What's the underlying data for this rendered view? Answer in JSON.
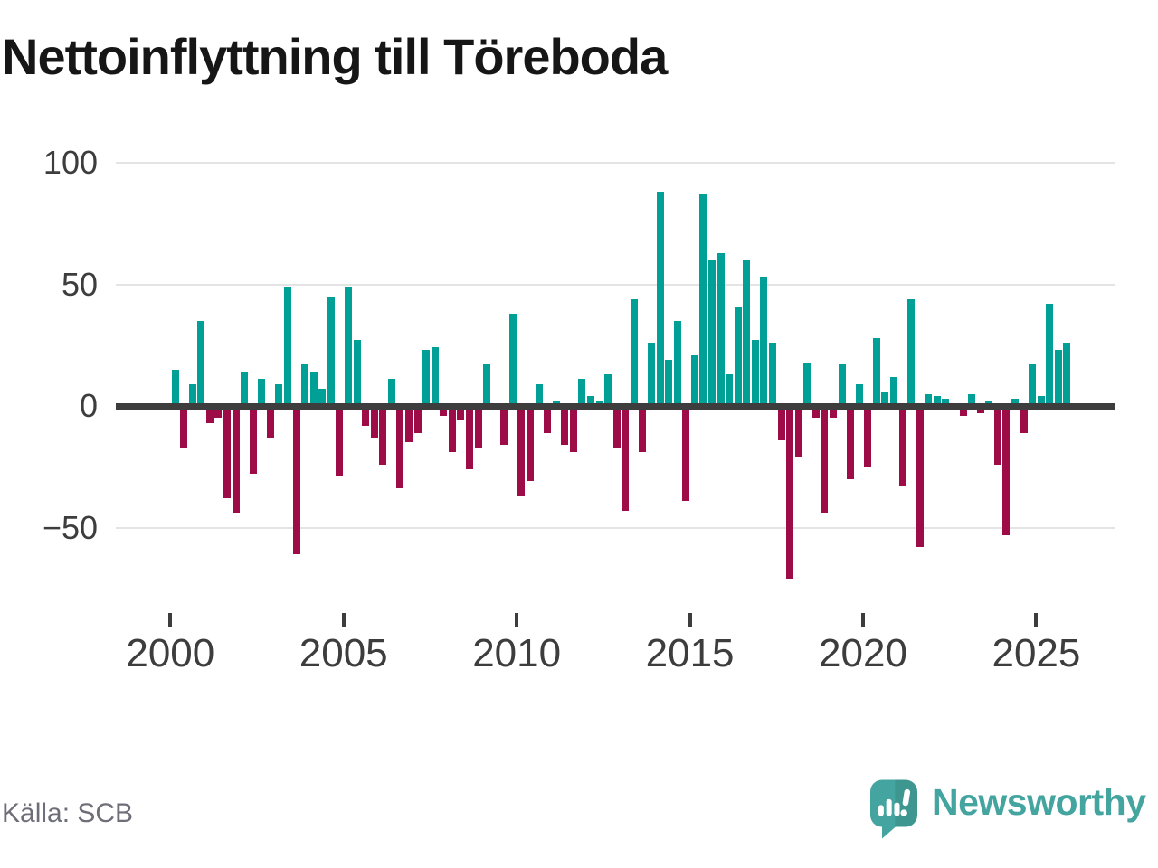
{
  "title": "Nettoinflyttning till Töreboda",
  "source": "Källa: SCB",
  "branding": {
    "name": "Newsworthy"
  },
  "colors": {
    "positive": "#00a096",
    "negative": "#9d0c46",
    "grid": "#e4e4e4",
    "axis": "#3d3d3d",
    "tick_label": "#3d3d3d",
    "title": "#161616",
    "source": "#6e6e78",
    "logo": "#44a49f",
    "logo_shade": "#3e9691",
    "background": "#ffffff"
  },
  "chart_data": {
    "type": "bar",
    "title": "Nettoinflyttning till Töreboda",
    "frequency": "quarterly",
    "x_range": [
      "2000 Q1",
      "2025 Q4"
    ],
    "ylim": [
      -75,
      105
    ],
    "grid": "horizontal",
    "legend": "none",
    "y_axis": {
      "ticks": [
        {
          "value": 100,
          "label": "100"
        },
        {
          "value": 50,
          "label": "50"
        },
        {
          "value": 0,
          "label": "0"
        },
        {
          "value": -50,
          "label": "−50"
        }
      ]
    },
    "x_axis": {
      "ticks": [
        {
          "year": 2000,
          "label": "2000"
        },
        {
          "year": 2005,
          "label": "2005"
        },
        {
          "year": 2010,
          "label": "2010"
        },
        {
          "year": 2015,
          "label": "2015"
        },
        {
          "year": 2020,
          "label": "2020"
        },
        {
          "year": 2025,
          "label": "2025"
        }
      ]
    },
    "series": [
      {
        "name": "Nettoinflyttning",
        "values_by_year": [
          {
            "year": 2000,
            "q": [
              15,
              -17,
              9,
              35
            ]
          },
          {
            "year": 2001,
            "q": [
              -7,
              -5,
              -38,
              -44
            ]
          },
          {
            "year": 2002,
            "q": [
              14,
              -28,
              11,
              -13
            ]
          },
          {
            "year": 2003,
            "q": [
              9,
              49,
              -61,
              17
            ]
          },
          {
            "year": 2004,
            "q": [
              14,
              7,
              45,
              -29
            ]
          },
          {
            "year": 2005,
            "q": [
              49,
              27,
              -8,
              -13
            ]
          },
          {
            "year": 2006,
            "q": [
              -24,
              11,
              -34,
              -15
            ]
          },
          {
            "year": 2007,
            "q": [
              -11,
              23,
              24,
              -4
            ]
          },
          {
            "year": 2008,
            "q": [
              -19,
              -6,
              -26,
              -17
            ]
          },
          {
            "year": 2009,
            "q": [
              17,
              -2,
              -16,
              38
            ]
          },
          {
            "year": 2010,
            "q": [
              -37,
              -31,
              9,
              -11
            ]
          },
          {
            "year": 2011,
            "q": [
              2,
              -16,
              -19,
              11
            ]
          },
          {
            "year": 2012,
            "q": [
              4,
              2,
              13,
              -17
            ]
          },
          {
            "year": 2013,
            "q": [
              -43,
              44,
              -19,
              26
            ]
          },
          {
            "year": 2014,
            "q": [
              88,
              19,
              35,
              -39
            ]
          },
          {
            "year": 2015,
            "q": [
              21,
              87,
              60,
              63
            ]
          },
          {
            "year": 2016,
            "q": [
              13,
              41,
              60,
              27
            ]
          },
          {
            "year": 2017,
            "q": [
              53,
              26,
              -14,
              -71
            ]
          },
          {
            "year": 2018,
            "q": [
              -21,
              18,
              -5,
              -44
            ]
          },
          {
            "year": 2019,
            "q": [
              -5,
              17,
              -30,
              9
            ]
          },
          {
            "year": 2020,
            "q": [
              -25,
              28,
              6,
              12
            ]
          },
          {
            "year": 2021,
            "q": [
              -33,
              44,
              -58,
              5
            ]
          },
          {
            "year": 2022,
            "q": [
              4,
              3,
              -2,
              -4
            ]
          },
          {
            "year": 2023,
            "q": [
              5,
              -3,
              2,
              -24
            ]
          },
          {
            "year": 2024,
            "q": [
              -53,
              3,
              -11,
              17
            ]
          },
          {
            "year": 2025,
            "q": [
              4,
              42,
              23,
              26
            ]
          }
        ]
      }
    ]
  }
}
